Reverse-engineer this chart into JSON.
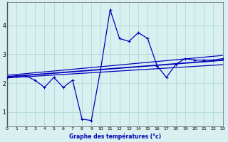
{
  "x": [
    0,
    1,
    2,
    3,
    4,
    5,
    6,
    7,
    8,
    9,
    10,
    11,
    12,
    13,
    14,
    15,
    16,
    17,
    18,
    19,
    20,
    21,
    22,
    23
  ],
  "temp": [
    2.2,
    2.25,
    2.25,
    2.1,
    1.85,
    2.2,
    1.85,
    2.1,
    0.75,
    0.7,
    2.5,
    4.55,
    3.55,
    3.45,
    3.75,
    3.55,
    2.6,
    2.2,
    2.65,
    2.85,
    2.8,
    2.8,
    2.8,
    2.85
  ],
  "trend_low": [
    2.18,
    2.2,
    2.22,
    2.24,
    2.26,
    2.28,
    2.3,
    2.32,
    2.34,
    2.36,
    2.38,
    2.4,
    2.42,
    2.44,
    2.46,
    2.48,
    2.5,
    2.52,
    2.54,
    2.56,
    2.58,
    2.6,
    2.62,
    2.64
  ],
  "trend_mid": [
    2.22,
    2.245,
    2.27,
    2.295,
    2.32,
    2.345,
    2.37,
    2.395,
    2.42,
    2.445,
    2.47,
    2.495,
    2.52,
    2.545,
    2.57,
    2.595,
    2.62,
    2.645,
    2.67,
    2.695,
    2.72,
    2.745,
    2.77,
    2.795
  ],
  "trend_high": [
    2.27,
    2.3,
    2.33,
    2.36,
    2.39,
    2.42,
    2.45,
    2.48,
    2.51,
    2.54,
    2.57,
    2.6,
    2.63,
    2.66,
    2.69,
    2.72,
    2.75,
    2.78,
    2.81,
    2.84,
    2.87,
    2.9,
    2.93,
    2.96
  ],
  "line_color": "#0000bb",
  "bg_color": "#d8f0f0",
  "grid_color": "#b0d8d8",
  "xlabel": "Graphe des températures (°c)",
  "xlim": [
    0,
    23
  ],
  "ylim": [
    0.5,
    4.8
  ],
  "yticks": [
    1,
    2,
    3,
    4
  ],
  "xticks": [
    0,
    1,
    2,
    3,
    4,
    5,
    6,
    7,
    8,
    9,
    10,
    11,
    12,
    13,
    14,
    15,
    16,
    17,
    18,
    19,
    20,
    21,
    22,
    23
  ]
}
